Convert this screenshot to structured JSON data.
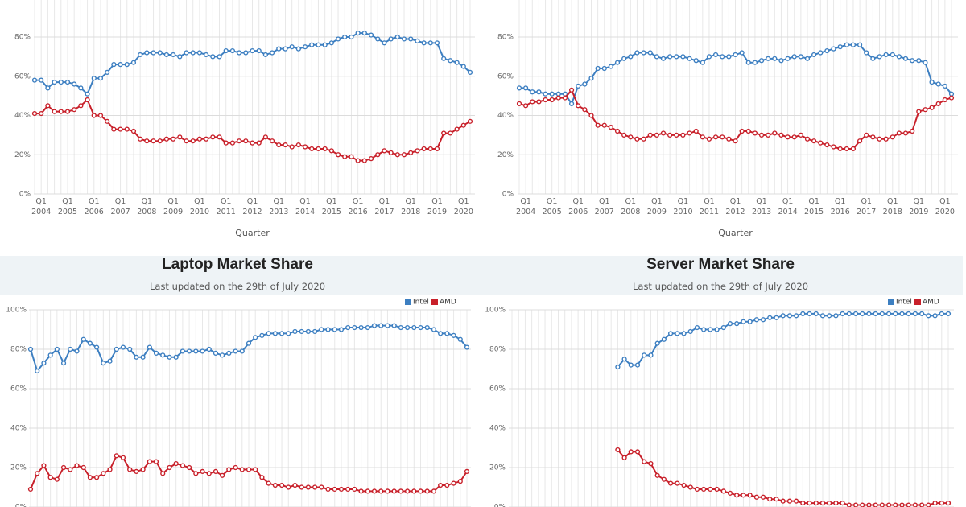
{
  "chart_data": [
    {
      "type": "line",
      "x_label": "Quarter",
      "categories": [
        null,
        "Q1\n2004",
        null,
        null,
        null,
        "Q1\n2005",
        null,
        null,
        null,
        "Q1\n2006",
        null,
        null,
        null,
        "Q1\n2007",
        null,
        null,
        null,
        "Q1\n2008",
        null,
        null,
        null,
        "Q1\n2009",
        null,
        null,
        null,
        "Q1\n2010",
        null,
        null,
        null,
        "Q1\n2011",
        null,
        null,
        null,
        "Q1\n2012",
        null,
        null,
        null,
        "Q1\n2013",
        null,
        null,
        null,
        "Q1\n2014",
        null,
        null,
        null,
        "Q1\n2015",
        null,
        null,
        null,
        "Q1\n2016",
        null,
        null,
        null,
        "Q1\n2017",
        null,
        null,
        null,
        "Q1\n2018",
        null,
        null,
        null,
        "Q1\n2019",
        null,
        null,
        null,
        "Q1\n2020",
        null
      ],
      "series": [
        {
          "color": "#3d7fc1",
          "values": [
            58,
            58,
            54,
            57,
            57,
            57,
            56,
            54,
            51,
            59,
            59,
            62,
            66,
            66,
            66,
            67,
            71,
            72,
            72,
            72,
            71,
            71,
            70,
            72,
            72,
            72,
            71,
            70,
            70,
            73,
            73,
            72,
            72,
            73,
            73,
            71,
            72,
            74,
            74,
            75,
            74,
            75,
            76,
            76,
            76,
            77,
            79,
            80,
            80,
            82,
            82,
            81,
            79,
            77,
            79,
            80,
            79,
            79,
            78,
            77,
            77,
            77,
            69,
            68,
            67,
            65,
            62
          ]
        },
        {
          "color": "#c8202a",
          "values": [
            41,
            41,
            45,
            42,
            42,
            42,
            43,
            45,
            48,
            40,
            40,
            37,
            33,
            33,
            33,
            32,
            28,
            27,
            27,
            27,
            28,
            28,
            29,
            27,
            27,
            28,
            28,
            29,
            29,
            26,
            26,
            27,
            27,
            26,
            26,
            29,
            27,
            25,
            25,
            24,
            25,
            24,
            23,
            23,
            23,
            22,
            20,
            19,
            19,
            17,
            17,
            18,
            20,
            22,
            21,
            20,
            20,
            21,
            22,
            23,
            23,
            23,
            31,
            31,
            33,
            35,
            37
          ]
        }
      ],
      "ylim": [
        0,
        100
      ],
      "yticks": [
        {
          "value": 0,
          "label": "0%"
        },
        {
          "value": 20,
          "label": "20%"
        },
        {
          "value": 40,
          "label": "40%"
        },
        {
          "value": 60,
          "label": "60%"
        },
        {
          "value": 80,
          "label": "80%"
        }
      ],
      "grid": true
    },
    {
      "type": "line",
      "x_label": "Quarter",
      "categories": [
        null,
        "Q1\n2004",
        null,
        null,
        null,
        "Q1\n2005",
        null,
        null,
        null,
        "Q1\n2006",
        null,
        null,
        null,
        "Q1\n2007",
        null,
        null,
        null,
        "Q1\n2008",
        null,
        null,
        null,
        "Q1\n2009",
        null,
        null,
        null,
        "Q1\n2010",
        null,
        null,
        null,
        "Q1\n2011",
        null,
        null,
        null,
        "Q1\n2012",
        null,
        null,
        null,
        "Q1\n2013",
        null,
        null,
        null,
        "Q1\n2014",
        null,
        null,
        null,
        "Q1\n2015",
        null,
        null,
        null,
        "Q1\n2016",
        null,
        null,
        null,
        "Q1\n2017",
        null,
        null,
        null,
        "Q1\n2018",
        null,
        null,
        null,
        "Q1\n2019",
        null,
        null,
        null,
        "Q1\n2020",
        null
      ],
      "series": [
        {
          "color": "#3d7fc1",
          "values": [
            54,
            54,
            52,
            52,
            51,
            51,
            51,
            51,
            46,
            55,
            56,
            59,
            64,
            64,
            65,
            67,
            69,
            70,
            72,
            72,
            72,
            70,
            69,
            70,
            70,
            70,
            69,
            68,
            67,
            70,
            71,
            70,
            70,
            71,
            72,
            67,
            67,
            68,
            69,
            69,
            68,
            69,
            70,
            70,
            69,
            71,
            72,
            73,
            74,
            75,
            76,
            76,
            76,
            72,
            69,
            70,
            71,
            71,
            70,
            69,
            68,
            68,
            67,
            57,
            56,
            55,
            51
          ]
        },
        {
          "color": "#c8202a",
          "values": [
            46,
            45,
            47,
            47,
            48,
            48,
            49,
            49,
            53,
            45,
            43,
            40,
            35,
            35,
            34,
            32,
            30,
            29,
            28,
            28,
            30,
            30,
            31,
            30,
            30,
            30,
            31,
            32,
            29,
            28,
            29,
            29,
            28,
            27,
            32,
            32,
            31,
            30,
            30,
            31,
            30,
            29,
            29,
            30,
            28,
            27,
            26,
            25,
            24,
            23,
            23,
            23,
            27,
            30,
            29,
            28,
            28,
            29,
            31,
            31,
            32,
            42,
            43,
            44,
            46,
            48,
            49
          ]
        }
      ],
      "ylim": [
        0,
        100
      ],
      "yticks": [
        {
          "value": 0,
          "label": "0%"
        },
        {
          "value": 20,
          "label": "20%"
        },
        {
          "value": 40,
          "label": "40%"
        },
        {
          "value": 60,
          "label": "60%"
        },
        {
          "value": 80,
          "label": "80%"
        }
      ],
      "grid": true
    },
    {
      "type": "line",
      "title": "Laptop Market Share",
      "subtitle": "Last updated on the 29th of July 2020",
      "legend": "top-right",
      "series": [
        {
          "name": "Intel",
          "color": "#3d7fc1",
          "values": [
            80,
            69,
            73,
            77,
            80,
            73,
            80,
            79,
            85,
            83,
            81,
            73,
            74,
            80,
            81,
            80,
            76,
            76,
            81,
            78,
            77,
            76,
            76,
            79,
            79,
            79,
            79,
            80,
            78,
            77,
            78,
            79,
            79,
            83,
            86,
            87,
            88,
            88,
            88,
            88,
            89,
            89,
            89,
            89,
            90,
            90,
            90,
            90,
            91,
            91,
            91,
            91,
            92,
            92,
            92,
            92,
            91,
            91,
            91,
            91,
            91,
            90,
            88,
            88,
            87,
            85,
            81
          ]
        },
        {
          "name": "AMD",
          "color": "#c8202a",
          "values": [
            9,
            17,
            21,
            15,
            14,
            20,
            19,
            21,
            20,
            15,
            15,
            17,
            19,
            26,
            25,
            19,
            18,
            19,
            23,
            23,
            17,
            20,
            22,
            21,
            20,
            17,
            18,
            17,
            18,
            16,
            19,
            20,
            19,
            19,
            19,
            15,
            12,
            11,
            11,
            10,
            11,
            10,
            10,
            10,
            10,
            9,
            9,
            9,
            9,
            9,
            8,
            8,
            8,
            8,
            8,
            8,
            8,
            8,
            8,
            8,
            8,
            8,
            11,
            11,
            12,
            13,
            18
          ]
        }
      ],
      "ylim": [
        0,
        100
      ],
      "yticks": [
        {
          "value": 0,
          "label": "0%"
        },
        {
          "value": 20,
          "label": "20%"
        },
        {
          "value": 40,
          "label": "40%"
        },
        {
          "value": 60,
          "label": "60%"
        },
        {
          "value": 80,
          "label": "80%"
        },
        {
          "value": 100,
          "label": "100%"
        }
      ],
      "grid": true
    },
    {
      "type": "line",
      "title": "Server Market Share",
      "subtitle": "Last updated on the 29th of July 2020",
      "legend": "top-right",
      "series": [
        {
          "name": "Intel",
          "color": "#3d7fc1",
          "values": [
            null,
            null,
            null,
            null,
            null,
            null,
            null,
            null,
            null,
            null,
            null,
            null,
            null,
            null,
            null,
            null,
            71,
            75,
            72,
            72,
            77,
            77,
            83,
            85,
            88,
            88,
            88,
            89,
            91,
            90,
            90,
            90,
            91,
            93,
            93,
            94,
            94,
            95,
            95,
            96,
            96,
            97,
            97,
            97,
            98,
            98,
            98,
            97,
            97,
            97,
            98,
            98,
            98,
            98,
            98,
            98,
            98,
            98,
            98,
            98,
            98,
            98,
            98,
            97,
            97,
            98,
            98
          ]
        },
        {
          "name": "AMD",
          "color": "#c8202a",
          "values": [
            null,
            null,
            null,
            null,
            null,
            null,
            null,
            null,
            null,
            null,
            null,
            null,
            null,
            null,
            null,
            null,
            29,
            25,
            28,
            28,
            23,
            22,
            16,
            14,
            12,
            12,
            11,
            10,
            9,
            9,
            9,
            9,
            8,
            7,
            6,
            6,
            6,
            5,
            5,
            4,
            4,
            3,
            3,
            3,
            2,
            2,
            2,
            2,
            2,
            2,
            2,
            1,
            1,
            1,
            1,
            1,
            1,
            1,
            1,
            1,
            1,
            1,
            1,
            1,
            2,
            2,
            2
          ]
        }
      ],
      "ylim": [
        0,
        100
      ],
      "yticks": [
        {
          "value": 0,
          "label": "0%"
        },
        {
          "value": 20,
          "label": "20%"
        },
        {
          "value": 40,
          "label": "40%"
        },
        {
          "value": 60,
          "label": "60%"
        },
        {
          "value": 80,
          "label": "80%"
        },
        {
          "value": 100,
          "label": "100%"
        }
      ],
      "grid": true
    }
  ]
}
